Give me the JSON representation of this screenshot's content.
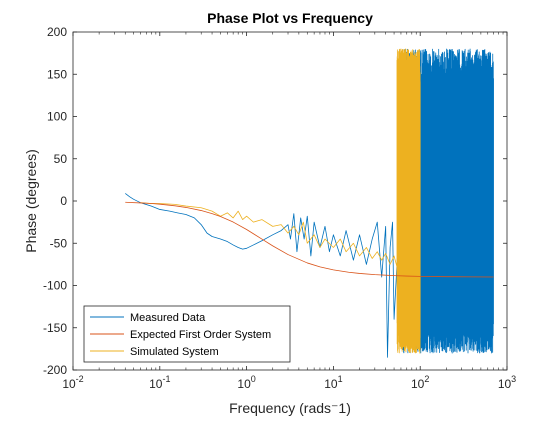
{
  "chart_data": {
    "type": "line",
    "title": "Phase Plot vs Frequency",
    "xlabel": "Frequency (rads⁻1)",
    "ylabel": "Phase (degrees)",
    "xscale": "log",
    "xlim": [
      0.01,
      1000
    ],
    "ylim": [
      -200,
      200
    ],
    "x_ticks": [
      0.01,
      0.1,
      1,
      10,
      100,
      1000
    ],
    "x_tick_labels": [
      {
        "base": "10",
        "exp": "-2"
      },
      {
        "base": "10",
        "exp": "-1"
      },
      {
        "base": "10",
        "exp": "0"
      },
      {
        "base": "10",
        "exp": "1"
      },
      {
        "base": "10",
        "exp": "2"
      },
      {
        "base": "10",
        "exp": "3"
      }
    ],
    "y_ticks": [
      -200,
      -150,
      -100,
      -50,
      0,
      50,
      100,
      150,
      200
    ],
    "y_tick_labels": [
      "-200",
      "-150",
      "-100",
      "-50",
      "0",
      "50",
      "100",
      "150",
      "200"
    ],
    "grid": false,
    "legend_position": "bottom-left",
    "series": [
      {
        "name": "Measured Data",
        "color": "#0072BD",
        "points": [
          [
            0.04,
            9
          ],
          [
            0.045,
            5
          ],
          [
            0.05,
            2
          ],
          [
            0.06,
            -2
          ],
          [
            0.08,
            -6
          ],
          [
            0.1,
            -10
          ],
          [
            0.13,
            -12
          ],
          [
            0.16,
            -14
          ],
          [
            0.2,
            -16
          ],
          [
            0.25,
            -20
          ],
          [
            0.3,
            -28
          ],
          [
            0.35,
            -38
          ],
          [
            0.4,
            -42
          ],
          [
            0.5,
            -45
          ],
          [
            0.6,
            -48
          ],
          [
            0.7,
            -52
          ],
          [
            0.8,
            -55
          ],
          [
            0.9,
            -57
          ],
          [
            1.0,
            -56
          ],
          [
            1.2,
            -52
          ],
          [
            1.5,
            -47
          ],
          [
            2.0,
            -40
          ],
          [
            2.5,
            -35
          ],
          [
            3.0,
            -28
          ],
          [
            3.2,
            -45
          ],
          [
            3.5,
            -15
          ],
          [
            3.8,
            -60
          ],
          [
            4.2,
            -20
          ],
          [
            4.6,
            -45
          ],
          [
            5.0,
            -18
          ],
          [
            5.5,
            -65
          ],
          [
            6.0,
            -25
          ],
          [
            7.0,
            -55
          ],
          [
            8.0,
            -30
          ],
          [
            9.0,
            -60
          ],
          [
            10,
            -40
          ],
          [
            12,
            -65
          ],
          [
            14,
            -35
          ],
          [
            17,
            -70
          ],
          [
            20,
            -40
          ],
          [
            24,
            -75
          ],
          [
            28,
            -45
          ],
          [
            32,
            -25
          ],
          [
            36,
            -90
          ],
          [
            40,
            -30
          ],
          [
            42,
            -185
          ],
          [
            45,
            -55
          ],
          [
            48,
            -25
          ],
          [
            50,
            -140
          ],
          [
            55,
            -60
          ],
          [
            58,
            -90
          ]
        ],
        "band": {
          "x_min": 58,
          "x_max": 700,
          "y_min": -180,
          "y_max": 180,
          "y_noise_peak": 180
        }
      },
      {
        "name": "Expected First Order System",
        "color": "#D95319",
        "points": [
          [
            0.04,
            -1.5
          ],
          [
            0.06,
            -2.3
          ],
          [
            0.08,
            -3.0
          ],
          [
            0.1,
            -3.8
          ],
          [
            0.15,
            -5.7
          ],
          [
            0.2,
            -7.6
          ],
          [
            0.3,
            -11.3
          ],
          [
            0.4,
            -14.9
          ],
          [
            0.5,
            -18.4
          ],
          [
            0.7,
            -24.9
          ],
          [
            1.0,
            -33.7
          ],
          [
            1.5,
            -45.0
          ],
          [
            2.0,
            -53.1
          ],
          [
            3.0,
            -63.4
          ],
          [
            5.0,
            -73.3
          ],
          [
            7.0,
            -77.9
          ],
          [
            10,
            -81.5
          ],
          [
            15,
            -84.3
          ],
          [
            20,
            -85.7
          ],
          [
            30,
            -87.1
          ],
          [
            50,
            -88.3
          ],
          [
            70,
            -88.8
          ],
          [
            100,
            -89.2
          ],
          [
            200,
            -89.6
          ],
          [
            400,
            -89.8
          ],
          [
            700,
            -89.9
          ]
        ]
      },
      {
        "name": "Simulated System",
        "color": "#EDB120",
        "points": [
          [
            0.06,
            -2
          ],
          [
            0.08,
            -3
          ],
          [
            0.1,
            -3
          ],
          [
            0.15,
            -4
          ],
          [
            0.2,
            -6
          ],
          [
            0.3,
            -8
          ],
          [
            0.4,
            -12
          ],
          [
            0.5,
            -18
          ],
          [
            0.6,
            -14
          ],
          [
            0.7,
            -20
          ],
          [
            0.8,
            -12
          ],
          [
            0.9,
            -22
          ],
          [
            1.0,
            -18
          ],
          [
            1.2,
            -25
          ],
          [
            1.5,
            -22
          ],
          [
            2.0,
            -30
          ],
          [
            2.5,
            -28
          ],
          [
            3.0,
            -38
          ],
          [
            3.5,
            -30
          ],
          [
            4.0,
            -40
          ],
          [
            4.5,
            -25
          ],
          [
            5.0,
            -50
          ],
          [
            6.0,
            -40
          ],
          [
            7.0,
            -55
          ],
          [
            8.0,
            -45
          ],
          [
            10,
            -55
          ],
          [
            12,
            -45
          ],
          [
            14,
            -60
          ],
          [
            17,
            -50
          ],
          [
            20,
            -65
          ],
          [
            24,
            -55
          ],
          [
            28,
            -68
          ],
          [
            32,
            -60
          ],
          [
            36,
            -70
          ],
          [
            40,
            -62
          ],
          [
            45,
            -75
          ],
          [
            50,
            -65
          ],
          [
            54,
            -78
          ]
        ],
        "band": {
          "x_min": 54,
          "x_max": 100,
          "y_min": -180,
          "y_max": 180
        }
      }
    ]
  }
}
